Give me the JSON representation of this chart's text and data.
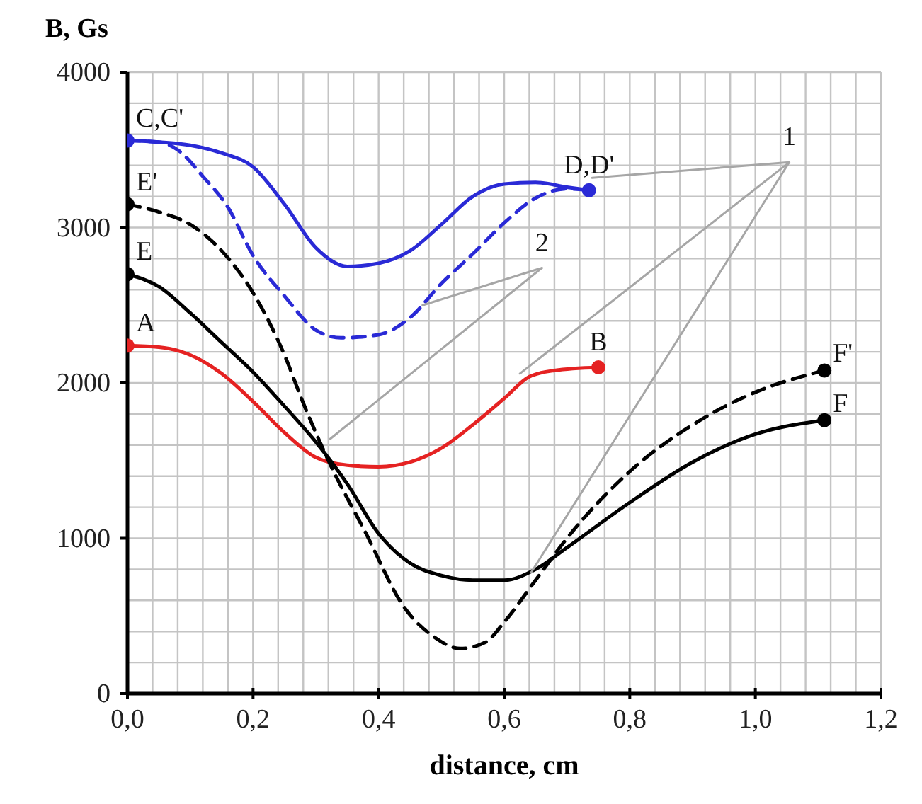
{
  "chart_data": {
    "type": "line",
    "xlabel": "distance, cm",
    "ylabel": "B, Gs",
    "xlim": [
      0,
      1.2
    ],
    "ylim": [
      0,
      4000
    ],
    "xticks": [
      {
        "value": 0,
        "label": "0,0"
      },
      {
        "value": 0.04,
        "label": null
      },
      {
        "value": 0.08,
        "label": null
      },
      {
        "value": 0.12,
        "label": null
      },
      {
        "value": 0.16,
        "label": null
      },
      {
        "value": 0.2,
        "label": "0,2"
      },
      {
        "value": 0.24,
        "label": null
      },
      {
        "value": 0.28,
        "label": null
      },
      {
        "value": 0.32,
        "label": null
      },
      {
        "value": 0.36,
        "label": null
      },
      {
        "value": 0.4,
        "label": "0,4"
      },
      {
        "value": 0.44,
        "label": null
      },
      {
        "value": 0.48,
        "label": null
      },
      {
        "value": 0.52,
        "label": null
      },
      {
        "value": 0.56,
        "label": null
      },
      {
        "value": 0.6,
        "label": "0,6"
      },
      {
        "value": 0.64,
        "label": null
      },
      {
        "value": 0.68,
        "label": null
      },
      {
        "value": 0.72,
        "label": null
      },
      {
        "value": 0.76,
        "label": null
      },
      {
        "value": 0.8,
        "label": "0,8"
      },
      {
        "value": 0.84,
        "label": null
      },
      {
        "value": 0.88,
        "label": null
      },
      {
        "value": 0.92,
        "label": null
      },
      {
        "value": 0.96,
        "label": null
      },
      {
        "value": 1.0,
        "label": "1,0"
      },
      {
        "value": 1.04,
        "label": null
      },
      {
        "value": 1.08,
        "label": null
      },
      {
        "value": 1.12,
        "label": null
      },
      {
        "value": 1.16,
        "label": null
      },
      {
        "value": 1.2,
        "label": "1,2"
      }
    ],
    "yticks": [
      0,
      {
        "value": 200,
        "label": null
      },
      {
        "value": 400,
        "label": null
      },
      {
        "value": 600,
        "label": null
      },
      {
        "value": 800,
        "label": null
      },
      1000,
      {
        "value": 1200,
        "label": null
      },
      {
        "value": 1400,
        "label": null
      },
      {
        "value": 1600,
        "label": null
      },
      {
        "value": 1800,
        "label": null
      },
      2000,
      {
        "value": 2200,
        "label": null
      },
      {
        "value": 2400,
        "label": null
      },
      {
        "value": 2600,
        "label": null
      },
      {
        "value": 2800,
        "label": null
      },
      3000,
      {
        "value": 3200,
        "label": null
      },
      {
        "value": 3400,
        "label": null
      },
      {
        "value": 3600,
        "label": null
      },
      {
        "value": 3800,
        "label": null
      },
      4000
    ],
    "grid": true,
    "series": [
      {
        "color": "#e52222",
        "line_style": "solid",
        "x": [
          0,
          0.05,
          0.1,
          0.15,
          0.2,
          0.25,
          0.3,
          0.35,
          0.4,
          0.45,
          0.5,
          0.55,
          0.6,
          0.64,
          0.68,
          0.75
        ],
        "values": [
          2240,
          2230,
          2180,
          2060,
          1880,
          1680,
          1520,
          1470,
          1460,
          1490,
          1580,
          1730,
          1900,
          2040,
          2080,
          2100
        ]
      },
      {
        "color": "#2a2ad6",
        "line_style": "solid",
        "x": [
          0,
          0.05,
          0.1,
          0.15,
          0.2,
          0.25,
          0.3,
          0.35,
          0.4,
          0.45,
          0.5,
          0.55,
          0.6,
          0.65,
          0.7,
          0.735
        ],
        "values": [
          3560,
          3550,
          3530,
          3480,
          3390,
          3150,
          2870,
          2750,
          2770,
          2850,
          3020,
          3200,
          3280,
          3290,
          3260,
          3240
        ]
      },
      {
        "color": "#2a2ad6",
        "line_style": "dashed",
        "x": [
          0,
          0.05,
          0.08,
          0.12,
          0.16,
          0.2,
          0.25,
          0.3,
          0.34,
          0.4,
          0.45,
          0.5,
          0.55,
          0.6,
          0.65,
          0.7,
          0.735
        ],
        "values": [
          3560,
          3550,
          3500,
          3330,
          3130,
          2820,
          2560,
          2340,
          2290,
          2310,
          2420,
          2640,
          2830,
          3030,
          3190,
          3250,
          3240
        ]
      },
      {
        "color": "#000000",
        "line_style": "solid",
        "x": [
          0,
          0.05,
          0.1,
          0.15,
          0.2,
          0.25,
          0.3,
          0.35,
          0.4,
          0.45,
          0.5,
          0.55,
          0.6,
          0.65,
          0.7,
          0.8,
          0.9,
          1.0,
          1.11
        ],
        "values": [
          2700,
          2620,
          2450,
          2260,
          2070,
          1850,
          1620,
          1350,
          1030,
          840,
          760,
          730,
          730,
          800,
          940,
          1230,
          1490,
          1670,
          1760
        ]
      },
      {
        "color": "#000000",
        "line_style": "dashed",
        "x": [
          0,
          0.05,
          0.1,
          0.15,
          0.2,
          0.25,
          0.28,
          0.32,
          0.38,
          0.44,
          0.49,
          0.53,
          0.57,
          0.6,
          0.65,
          0.7,
          0.8,
          0.9,
          1.0,
          1.11
        ],
        "values": [
          3150,
          3100,
          3020,
          2850,
          2580,
          2180,
          1870,
          1500,
          1030,
          560,
          360,
          290,
          330,
          460,
          730,
          1000,
          1430,
          1730,
          1940,
          2080
        ]
      },
      {
        "type": "scatter",
        "color": "#e52222",
        "marker": "circle",
        "x": [
          0,
          0.75
        ],
        "values": [
          2240,
          2100
        ]
      },
      {
        "type": "scatter",
        "color": "#2a2ad6",
        "marker": "circle",
        "x": [
          0,
          0.735
        ],
        "values": [
          3560,
          3240
        ]
      },
      {
        "type": "scatter",
        "color": "#000000",
        "marker": "circle",
        "x": [
          0,
          0,
          1.11,
          1.11
        ],
        "values": [
          2700,
          3150,
          1760,
          2080
        ]
      },
      {
        "color": "#a6a6a6",
        "line_style": "solid",
        "x": [
          0.74,
          1.054
        ],
        "values": [
          3320,
          3420
        ]
      },
      {
        "color": "#a6a6a6",
        "line_style": "solid",
        "x": [
          0.625,
          1.054
        ],
        "values": [
          2060,
          3420
        ]
      },
      {
        "color": "#a6a6a6",
        "line_style": "solid",
        "x": [
          0.643,
          1.054
        ],
        "values": [
          780,
          3420
        ]
      },
      {
        "color": "#a6a6a6",
        "line_style": "solid",
        "x": [
          0.47,
          0.66
        ],
        "values": [
          2500,
          2740
        ]
      },
      {
        "color": "#a6a6a6",
        "line_style": "solid",
        "x": [
          0.323,
          0.66
        ],
        "values": [
          1640,
          2740
        ]
      }
    ],
    "annotations": [
      {
        "text": "A",
        "x": 0,
        "y": 2240
      },
      {
        "text": "B",
        "x": 0.75,
        "y": 2100
      },
      {
        "text": "C,C'",
        "x": 0,
        "y": 3560
      },
      {
        "text": "D,D'",
        "x": 0.735,
        "y": 3240
      },
      {
        "text": "E",
        "x": 0,
        "y": 2700
      },
      {
        "text": "E'",
        "x": 0,
        "y": 3150
      },
      {
        "text": "F",
        "x": 1.11,
        "y": 1760
      },
      {
        "text": "F'",
        "x": 1.11,
        "y": 2080
      },
      {
        "text": "1",
        "x": 1.054,
        "y": 3420
      },
      {
        "text": "2",
        "x": 0.66,
        "y": 2740
      }
    ]
  }
}
